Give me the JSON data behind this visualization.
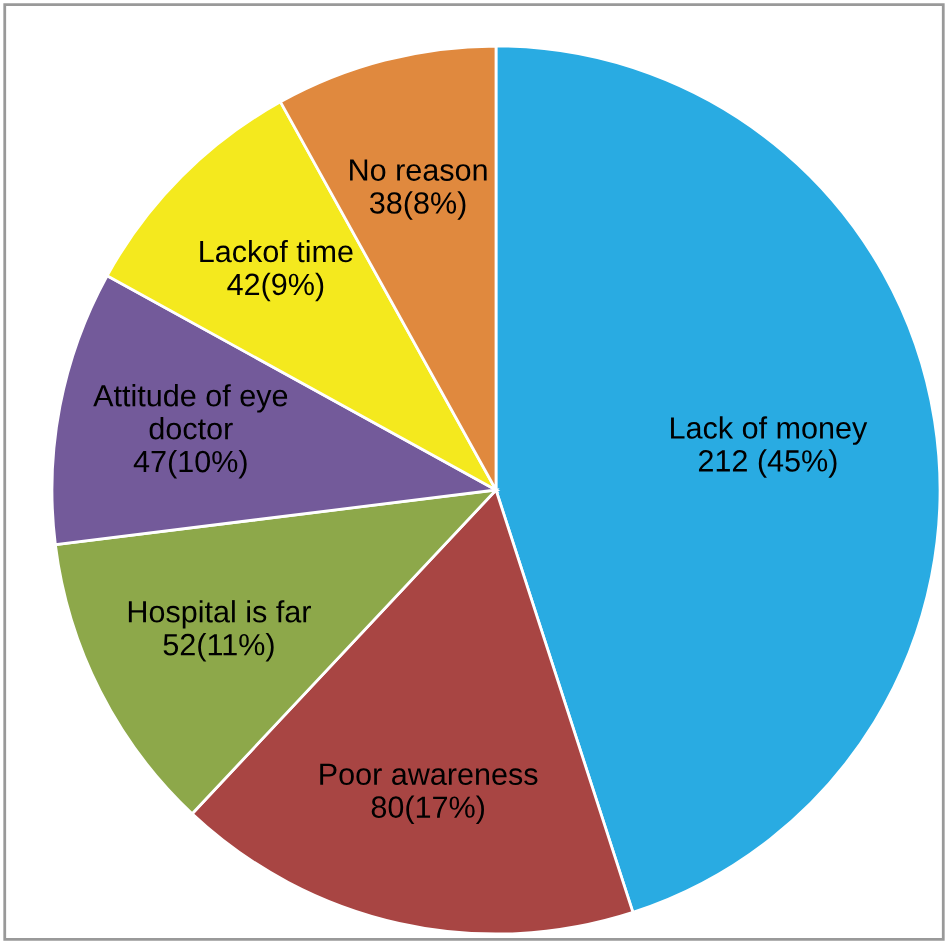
{
  "chart_data": {
    "type": "pie",
    "categories": [
      "Lack of money",
      "Poor awareness",
      "Hospital is far",
      "Attitude of eye\ndoctor",
      "Lackof time",
      "No reason"
    ],
    "values": [
      212,
      80,
      52,
      47,
      42,
      38
    ],
    "value_labels": [
      "212 (45%)",
      "80(17%)",
      "52(11%)",
      "47(10%)",
      "42(9%)",
      "38(8%)"
    ],
    "colors": [
      "#29abe2",
      "#a84543",
      "#8da84a",
      "#735a9a",
      "#f4e91e",
      "#e0893e"
    ],
    "legend": false
  }
}
